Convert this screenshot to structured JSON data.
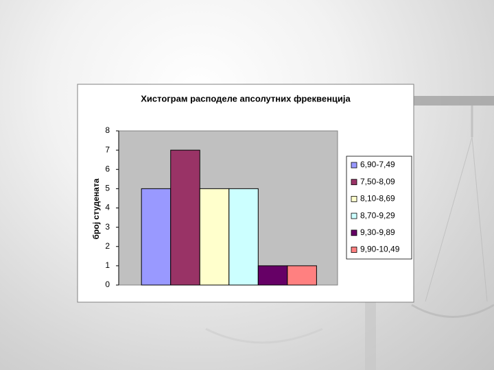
{
  "chart_data": {
    "type": "bar",
    "title": "Хистограм расподеле апсолутних фреквенција",
    "y_label": "број студената",
    "categories": [
      null
    ],
    "series": [
      {
        "name": "6,90-7,49",
        "color": "#9999ff",
        "values": [
          5
        ]
      },
      {
        "name": "7,50-8,09",
        "color": "#993366",
        "values": [
          7
        ]
      },
      {
        "name": "8,10-8,69",
        "color": "#ffffcc",
        "values": [
          5
        ]
      },
      {
        "name": "8,70-9,29",
        "color": "#ccffff",
        "values": [
          5
        ]
      },
      {
        "name": "9,30-9,89",
        "color": "#660066",
        "values": [
          1
        ]
      },
      {
        "name": "9,90-10,49",
        "color": "#ff8080",
        "values": [
          1
        ]
      }
    ],
    "ylim": [
      0,
      8
    ],
    "yticks": [
      0,
      1,
      2,
      3,
      4,
      5,
      6,
      7,
      8
    ],
    "grid": false,
    "legend": "right"
  }
}
